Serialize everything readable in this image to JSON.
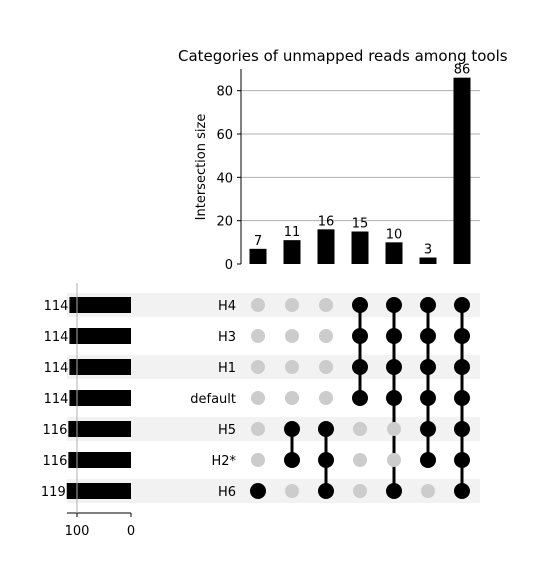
{
  "chart_data": {
    "type": "upset",
    "title": "Categories of unmapped reads among tools",
    "ylabel": "Intersection size",
    "yticks": [
      0,
      20,
      40,
      60,
      80
    ],
    "ylim": [
      0,
      90
    ],
    "grid": true,
    "sets": [
      {
        "name": "H4",
        "size": 114
      },
      {
        "name": "H3",
        "size": 114
      },
      {
        "name": "H1",
        "size": 114
      },
      {
        "name": "default",
        "size": 114
      },
      {
        "name": "H5",
        "size": 116
      },
      {
        "name": "H2*",
        "size": 116
      },
      {
        "name": "H6",
        "size": 119
      }
    ],
    "set_size_ticks": [
      100,
      0
    ],
    "set_size_xlim": [
      0,
      120
    ],
    "intersections": [
      {
        "value": 7,
        "members": [
          "H6"
        ]
      },
      {
        "value": 11,
        "members": [
          "H5",
          "H2*"
        ]
      },
      {
        "value": 16,
        "members": [
          "H5",
          "H2*",
          "H6"
        ]
      },
      {
        "value": 15,
        "members": [
          "H4",
          "H3",
          "H1",
          "default"
        ]
      },
      {
        "value": 10,
        "members": [
          "H4",
          "H3",
          "H1",
          "default",
          "H6"
        ]
      },
      {
        "value": 3,
        "members": [
          "H4",
          "H3",
          "H1",
          "default",
          "H5",
          "H2*"
        ]
      },
      {
        "value": 86,
        "members": [
          "H4",
          "H3",
          "H1",
          "default",
          "H5",
          "H2*",
          "H6"
        ]
      }
    ],
    "colors": {
      "bar": "#000000",
      "dot_active": "#000000",
      "dot_inactive": "#cccccc",
      "shade": "#f2f2f2",
      "grid": "#b0b0b0"
    }
  }
}
